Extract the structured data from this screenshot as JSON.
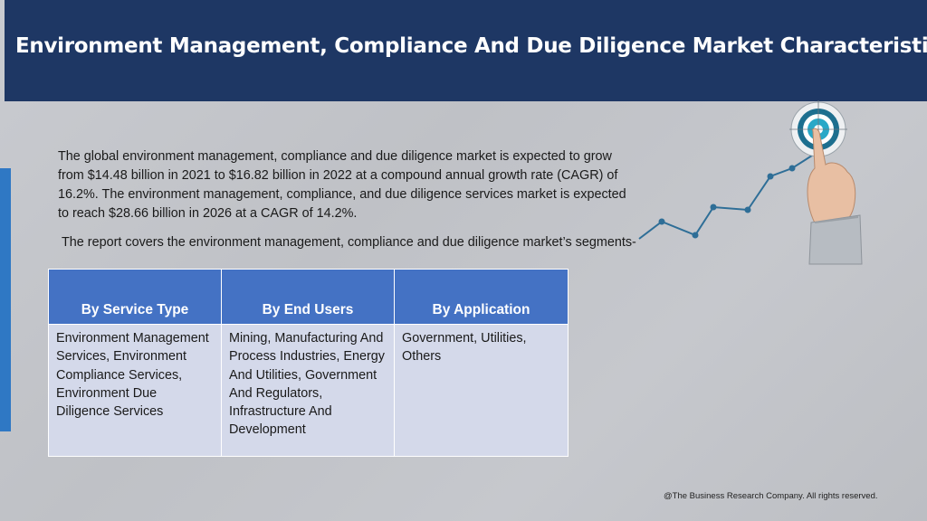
{
  "header": {
    "title": "Environment Management, Compliance And Due Diligence Market Characteristics"
  },
  "intro": {
    "paragraph": "The global environment management, compliance and due diligence market is expected to grow from $14.48 billion in 2021 to $16.82 billion in 2022 at a compound annual growth rate (CAGR) of 16.2%. The environment management, compliance, and due diligence services market is expected to reach $28.66 billion in 2026 at a CAGR of 14.2%.",
    "segments_note": "The report covers the environment management, compliance and due diligence market’s segments-"
  },
  "segments_table": {
    "headers": [
      "By Service Type",
      "By End Users",
      "By Application"
    ],
    "cells": [
      "Environment Management Services, Environment Compliance Services, Environment Due Diligence Services",
      "Mining, Manufacturing And Process Industries, Energy And Utilities, Government And Regulators, Infrastructure And Development",
      "Government, Utilities, Others"
    ]
  },
  "graphic": {
    "icons": [
      "target-icon",
      "pointing-hand-icon",
      "growth-line-icon"
    ],
    "colors": {
      "line": "#2e6e97",
      "target": "#29a8c7"
    }
  },
  "footer": {
    "copyright": "@The Business Research Company. All rights reserved."
  },
  "colors": {
    "header_bg": "#1e3764",
    "accent_bar": "#2f78c4",
    "table_header": "#4472c4",
    "table_cell": "#d4d9ea"
  }
}
